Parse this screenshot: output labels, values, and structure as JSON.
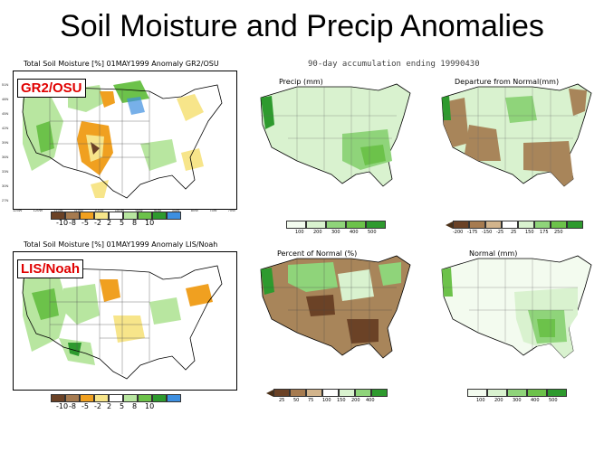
{
  "title": "Soil Moisture and Precip Anomalies",
  "subtitle": "90-day accumulation ending 19990430",
  "left_panels": [
    {
      "header": "Total Soil Moisture [%] 01MAY1999 Anomaly GR2/OSU",
      "tag": "GR2/OSU",
      "colorbar_labels": [
        "-10",
        "-8",
        "-5",
        "-2",
        "2",
        "5",
        "8",
        "10"
      ]
    },
    {
      "header": "Total Soil Moisture [%] 01MAY1999 Anomaly LIS/Noah",
      "tag": "LIS/Noah",
      "colorbar_labels": [
        "-10",
        "-8",
        "-5",
        "-2",
        "2",
        "5",
        "8",
        "10"
      ]
    }
  ],
  "maps": [
    {
      "title": "Precip (mm)",
      "colorbar_labels": [
        "100",
        "200",
        "300",
        "400",
        "500"
      ]
    },
    {
      "title": "Departure from Normal(mm)",
      "colorbar_labels": [
        "-200",
        "-175",
        "-150",
        "-25",
        "25",
        "150",
        "175",
        "250"
      ]
    },
    {
      "title": "Percent of Normal (%)",
      "colorbar_labels": [
        "25",
        "50",
        "75",
        "100",
        "150",
        "200",
        "400"
      ]
    },
    {
      "title": "Normal (mm)",
      "colorbar_labels": [
        "100",
        "200",
        "300",
        "400",
        "500"
      ]
    }
  ],
  "lat_labels": [
    "51N",
    "48N",
    "45N",
    "42N",
    "39N",
    "36N",
    "33N",
    "30N",
    "27N"
  ],
  "lon_labels": [
    "125W",
    "120W",
    "115W",
    "110W",
    "105W",
    "100W",
    "95W",
    "90W",
    "85W",
    "80W",
    "75W",
    "70W"
  ],
  "colors": {
    "brown_dark": "#6b4226",
    "brown": "#a67b50",
    "orange": "#f0a020",
    "yellow": "#f7e58a",
    "lightgreen": "#b8e6a0",
    "green": "#6cc24a",
    "darkgreen": "#2e9a2e",
    "blue": "#3d8fe0",
    "mapgreen_light": "#d9f2cf",
    "mapgreen": "#8fd47a",
    "mapbrown": "#a8855a"
  }
}
